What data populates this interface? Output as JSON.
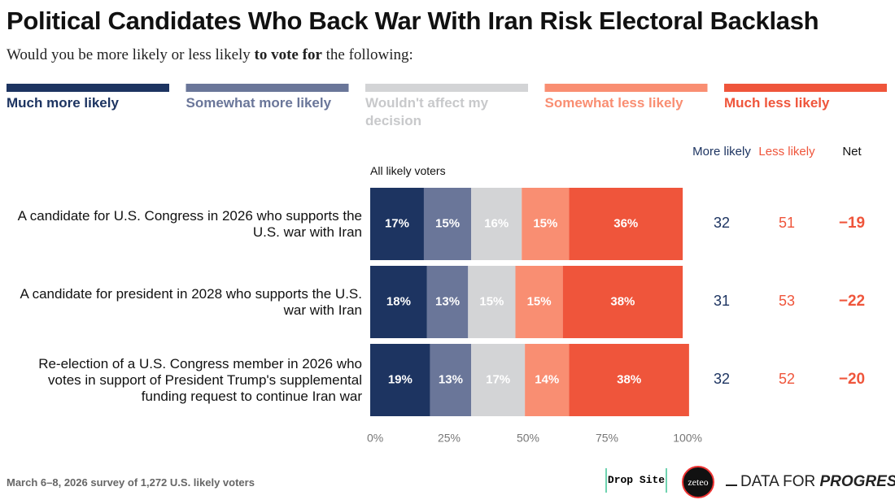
{
  "chart_data": {
    "type": "stacked_bar_horizontal",
    "title": "Political Candidates Who Back War With Iran Risk Electoral Backlash",
    "subtitle": [
      "Would you be more likely or less likely ",
      "to vote for",
      " the following:"
    ],
    "group_label": "All likely voters",
    "categories": [
      "A candidate for U.S. Congress in 2026 who supports the U.S. war with Iran",
      "A candidate for president in 2028 who supports the U.S. war with Iran",
      "Re-election of a U.S. Congress member in 2026 who votes in support of President Trump's supplemental funding request to continue Iran war"
    ],
    "series": [
      {
        "name": "Much more likely",
        "color": "#1d3461",
        "values": [
          17,
          18,
          19
        ],
        "value_labels": [
          "17%",
          "18%",
          "19%"
        ]
      },
      {
        "name": "Somewhat more likely",
        "color": "#6a7699",
        "values": [
          15,
          13,
          13
        ],
        "value_labels": [
          "15%",
          "13%",
          "13%"
        ]
      },
      {
        "name": "Wouldn't affect my decision",
        "color": "#d3d4d6",
        "values": [
          16,
          15,
          17
        ],
        "value_labels": [
          "16%",
          "15%",
          "17%"
        ]
      },
      {
        "name": "Somewhat less likely",
        "color": "#f98e72",
        "values": [
          15,
          15,
          14
        ],
        "value_labels": [
          "15%",
          "15%",
          "14%"
        ]
      },
      {
        "name": "Much less likely",
        "color": "#ef553b",
        "values": [
          36,
          38,
          38
        ],
        "value_labels": [
          "36%",
          "38%",
          "38%"
        ]
      }
    ],
    "xlim": [
      0,
      100
    ],
    "xticks": [
      {
        "value": 0,
        "label": "0%"
      },
      {
        "value": 25,
        "label": "25%"
      },
      {
        "value": 50,
        "label": "50%"
      },
      {
        "value": 75,
        "label": "75%"
      },
      {
        "value": 100,
        "label": "100%"
      }
    ],
    "columns": [
      {
        "name": "More likely",
        "color": "#1d3461",
        "bold": false,
        "values": [
          32,
          31,
          32
        ]
      },
      {
        "name": "Less likely",
        "color": "#ef553b",
        "bold": false,
        "values": [
          51,
          53,
          52
        ]
      },
      {
        "name": "Net",
        "color": "#ef553b",
        "bold": true,
        "values": [
          -19,
          -22,
          -20
        ],
        "value_labels": [
          "−19",
          "−22",
          "−20"
        ]
      }
    ],
    "source": "March 6–8, 2026 survey of 1,272 U.S. likely voters",
    "logos": [
      "Drop Site",
      "zeteo",
      "DATA FOR ",
      "PROGRESS"
    ]
  }
}
